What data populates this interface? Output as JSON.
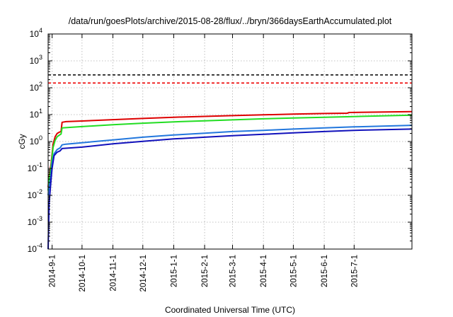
{
  "chart_data": {
    "type": "line",
    "title": "/data/run/goesPlots/archive/2015-08-28/flux/../bryn/366daysEarthAccumulated.plot",
    "xlabel": "Coordinated Universal Time (UTC)",
    "ylabel": "cGy",
    "y_scale": "log",
    "ylim_exp": [
      -4,
      4
    ],
    "y_tick_exponents": [
      "-4",
      "-3",
      "-2",
      "-1",
      "0",
      "1",
      "2",
      "3",
      "4"
    ],
    "y_tick_base": "10",
    "xlim": [
      "2014-08-28",
      "2015-08-28"
    ],
    "x_ticks": [
      {
        "date": "2014-09-01",
        "label": "2014-9-1"
      },
      {
        "date": "2014-10-01",
        "label": "2014-10-1"
      },
      {
        "date": "2014-11-01",
        "label": "2014-11-1"
      },
      {
        "date": "2014-12-01",
        "label": "2014-12-1"
      },
      {
        "date": "2015-01-01",
        "label": "2015-1-1"
      },
      {
        "date": "2015-02-01",
        "label": "2015-2-1"
      },
      {
        "date": "2015-03-01",
        "label": "2015-3-1"
      },
      {
        "date": "2015-04-01",
        "label": "2015-4-1"
      },
      {
        "date": "2015-05-01",
        "label": "2015-5-1"
      },
      {
        "date": "2015-06-01",
        "label": "2015-6-1"
      },
      {
        "date": "2015-07-01",
        "label": "2015-7-1"
      }
    ],
    "grid": true,
    "reference_lines": [
      {
        "y": 300,
        "color": "#000000",
        "style": "dashed"
      },
      {
        "y": 150,
        "color": "#ee0000",
        "style": "dashed"
      }
    ],
    "series": [
      {
        "color": "#dd0000",
        "points": [
          [
            "2014-08-28",
            0.02
          ],
          [
            "2014-08-29",
            0.05
          ],
          [
            "2014-08-31",
            0.15
          ],
          [
            "2014-09-02",
            0.8
          ],
          [
            "2014-09-04",
            1.5
          ],
          [
            "2014-09-06",
            2.0
          ],
          [
            "2014-09-08",
            2.2
          ],
          [
            "2014-09-10",
            2.4
          ],
          [
            "2014-09-11",
            5.2
          ],
          [
            "2014-09-15",
            5.5
          ],
          [
            "2014-10-01",
            5.8
          ],
          [
            "2014-11-01",
            6.5
          ],
          [
            "2014-12-01",
            7.2
          ],
          [
            "2015-01-01",
            8.0
          ],
          [
            "2015-02-01",
            8.6
          ],
          [
            "2015-03-01",
            9.2
          ],
          [
            "2015-04-01",
            9.8
          ],
          [
            "2015-05-01",
            10.5
          ],
          [
            "2015-06-01",
            11.0
          ],
          [
            "2015-06-24",
            11.3
          ],
          [
            "2015-06-26",
            12.0
          ],
          [
            "2015-08-28",
            13.0
          ]
        ]
      },
      {
        "color": "#22dd22",
        "points": [
          [
            "2014-08-28",
            0.015
          ],
          [
            "2014-08-29",
            0.04
          ],
          [
            "2014-08-31",
            0.12
          ],
          [
            "2014-09-02",
            0.6
          ],
          [
            "2014-09-04",
            1.1
          ],
          [
            "2014-09-06",
            1.5
          ],
          [
            "2014-09-08",
            1.7
          ],
          [
            "2014-09-10",
            1.9
          ],
          [
            "2014-09-11",
            3.2
          ],
          [
            "2014-10-01",
            3.6
          ],
          [
            "2014-11-01",
            4.2
          ],
          [
            "2014-12-01",
            4.8
          ],
          [
            "2015-01-01",
            5.4
          ],
          [
            "2015-02-01",
            5.9
          ],
          [
            "2015-03-01",
            6.4
          ],
          [
            "2015-04-01",
            7.0
          ],
          [
            "2015-05-01",
            7.5
          ],
          [
            "2015-06-01",
            8.0
          ],
          [
            "2015-07-01",
            8.5
          ],
          [
            "2015-08-28",
            9.5
          ]
        ]
      },
      {
        "color": "#2277dd",
        "points": [
          [
            "2014-08-28",
            0.01
          ],
          [
            "2014-08-29",
            0.02
          ],
          [
            "2014-08-31",
            0.06
          ],
          [
            "2014-09-01",
            0.15
          ],
          [
            "2014-09-03",
            0.35
          ],
          [
            "2014-09-06",
            0.5
          ],
          [
            "2014-09-09",
            0.58
          ],
          [
            "2014-09-11",
            0.75
          ],
          [
            "2014-09-15",
            0.8
          ],
          [
            "2014-10-01",
            0.9
          ],
          [
            "2014-11-01",
            1.15
          ],
          [
            "2014-12-01",
            1.45
          ],
          [
            "2015-01-01",
            1.75
          ],
          [
            "2015-02-01",
            2.05
          ],
          [
            "2015-03-01",
            2.35
          ],
          [
            "2015-04-01",
            2.6
          ],
          [
            "2015-05-01",
            2.9
          ],
          [
            "2015-06-01",
            3.2
          ],
          [
            "2015-07-01",
            3.5
          ],
          [
            "2015-08-28",
            4.0
          ]
        ]
      },
      {
        "color": "#1111bb",
        "points": [
          [
            "2014-08-28",
            0.0001
          ],
          [
            "2014-08-29",
            0.005
          ],
          [
            "2014-08-31",
            0.04
          ],
          [
            "2014-09-01",
            0.1
          ],
          [
            "2014-09-03",
            0.3
          ],
          [
            "2014-09-06",
            0.4
          ],
          [
            "2014-09-09",
            0.45
          ],
          [
            "2014-09-11",
            0.55
          ],
          [
            "2014-10-01",
            0.62
          ],
          [
            "2014-11-01",
            0.82
          ],
          [
            "2014-12-01",
            1.02
          ],
          [
            "2015-01-01",
            1.25
          ],
          [
            "2015-02-01",
            1.45
          ],
          [
            "2015-03-01",
            1.65
          ],
          [
            "2015-04-01",
            1.85
          ],
          [
            "2015-05-01",
            2.1
          ],
          [
            "2015-06-01",
            2.35
          ],
          [
            "2015-07-01",
            2.6
          ],
          [
            "2015-08-28",
            2.9
          ]
        ]
      }
    ]
  }
}
